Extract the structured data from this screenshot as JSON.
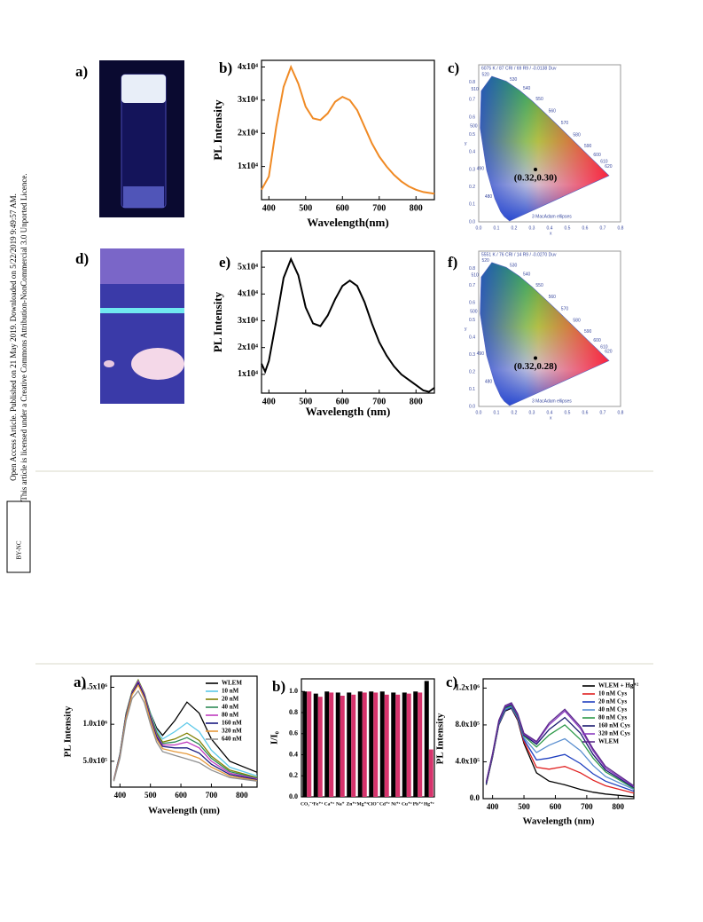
{
  "sidebar": {
    "line1": "Open Access Article. Published on 21 May 2019. Downloaded on 5/22/2019 9:49:57 AM.",
    "line2": "This article is licensed under a Creative Commons Attribution-NonCommercial 3.0 Unported Licence.",
    "badge": "BY-NC"
  },
  "panel_labels": [
    "a)",
    "b)",
    "c)",
    "d)",
    "e)",
    "f)",
    "a)",
    "b)",
    "c)"
  ],
  "cie": [
    {
      "header": "6075 K / 87 CRI / 69 R9 / -0.0138 Duv",
      "footer": "3  MacAdam ellipses",
      "point": {
        "x": 0.32,
        "y": 0.3,
        "label": "(0.32,0.30)"
      },
      "xticks": [
        "0.0",
        "0.1",
        "0.2",
        "0.3",
        "0.4",
        "0.5",
        "0.6",
        "0.7",
        "0.8"
      ],
      "yticks": [
        "0.0",
        "0.1",
        "0.2",
        "0.3",
        "0.4",
        "0.5",
        "0.6",
        "0.7",
        "0.8"
      ],
      "xlabel": "x",
      "ylabel": "y",
      "wavelengths": [
        "480",
        "490",
        "500",
        "510",
        "520",
        "530",
        "540",
        "550",
        "560",
        "570",
        "580",
        "590",
        "600",
        "610",
        "620"
      ]
    },
    {
      "header": "5551 K / 76 CRI / 14 R9 / -0.0270 Duv",
      "footer": "3  MacAdam ellipses",
      "point": {
        "x": 0.32,
        "y": 0.28,
        "label": "(0.32,0.28)"
      },
      "xticks": [
        "0.0",
        "0.1",
        "0.2",
        "0.3",
        "0.4",
        "0.5",
        "0.6",
        "0.7",
        "0.8"
      ],
      "yticks": [
        "0.0",
        "0.1",
        "0.2",
        "0.3",
        "0.4",
        "0.5",
        "0.6",
        "0.7",
        "0.8"
      ],
      "xlabel": "x",
      "ylabel": "y",
      "wavelengths": [
        "480",
        "490",
        "500",
        "510",
        "520",
        "530",
        "540",
        "550",
        "560",
        "570",
        "580",
        "590",
        "600",
        "610",
        "620"
      ]
    }
  ],
  "chart_data": [
    {
      "type": "line",
      "xlabel": "Wavelength(nm)",
      "ylabel": "PL Intensity",
      "xlim": [
        380,
        850
      ],
      "ylim": [
        0,
        42000
      ],
      "xticks": [
        400,
        500,
        600,
        700,
        800
      ],
      "yticks": [
        {
          "value": 10000,
          "label": "1x10⁴"
        },
        {
          "value": 20000,
          "label": "2x10⁴"
        },
        {
          "value": 30000,
          "label": "3x10⁴"
        },
        {
          "value": 40000,
          "label": "4x10⁴"
        }
      ],
      "x": [
        380,
        400,
        420,
        440,
        460,
        480,
        500,
        520,
        540,
        560,
        580,
        600,
        620,
        640,
        660,
        680,
        700,
        720,
        740,
        760,
        780,
        800,
        820,
        850
      ],
      "series": [
        {
          "color": "#f08a24",
          "values": [
            3000,
            7000,
            22000,
            34000,
            40000,
            35000,
            28000,
            24500,
            24000,
            26000,
            29500,
            31000,
            30000,
            27000,
            22000,
            17000,
            13000,
            10000,
            7500,
            5500,
            4000,
            3000,
            2300,
            1800
          ]
        }
      ]
    },
    {
      "type": "line",
      "xlabel": "Wavelength (nm)",
      "ylabel": "PL Intensity",
      "xlim": [
        380,
        850
      ],
      "ylim": [
        3000,
        56000
      ],
      "xticks": [
        400,
        500,
        600,
        700,
        800
      ],
      "yticks": [
        {
          "value": 10000,
          "label": "1x10⁴"
        },
        {
          "value": 20000,
          "label": "2x10⁴"
        },
        {
          "value": 30000,
          "label": "3x10⁴"
        },
        {
          "value": 40000,
          "label": "4x10⁴"
        },
        {
          "value": 50000,
          "label": "5x10⁴"
        }
      ],
      "x": [
        380,
        390,
        400,
        420,
        440,
        460,
        480,
        500,
        520,
        540,
        560,
        580,
        600,
        620,
        640,
        660,
        680,
        700,
        720,
        740,
        760,
        780,
        800,
        820,
        835,
        850
      ],
      "series": [
        {
          "color": "#000000",
          "values": [
            14000,
            11000,
            15000,
            30000,
            46000,
            53000,
            47000,
            35000,
            29000,
            28000,
            32000,
            38000,
            43000,
            45000,
            43000,
            37000,
            29000,
            22000,
            17000,
            13000,
            10000,
            8000,
            6000,
            4000,
            3500,
            5000
          ]
        }
      ]
    },
    {
      "type": "line",
      "xlabel": "Wavelength (nm)",
      "ylabel": "PL Intensity",
      "xlim": [
        370,
        850
      ],
      "ylim": [
        150000,
        1650000
      ],
      "xticks": [
        400,
        500,
        600,
        700,
        800
      ],
      "legend": "upper right",
      "yticks": [
        {
          "value": 500000,
          "label": "5.0x10⁵"
        },
        {
          "value": 1000000,
          "label": "1.0x10⁶"
        },
        {
          "value": 1500000,
          "label": "1.5x10⁶"
        }
      ],
      "x": [
        380,
        400,
        420,
        440,
        460,
        480,
        500,
        520,
        540,
        580,
        620,
        660,
        700,
        760,
        850
      ],
      "series": [
        {
          "name": "WLEM",
          "color": "#000000",
          "values": [
            250000,
            600000,
            1150000,
            1450000,
            1550000,
            1400000,
            1150000,
            950000,
            850000,
            1050000,
            1300000,
            1150000,
            800000,
            500000,
            350000
          ]
        },
        {
          "name": "10 nM",
          "color": "#5cc8e8",
          "values": [
            250000,
            600000,
            1150000,
            1450000,
            1580000,
            1420000,
            1150000,
            920000,
            800000,
            900000,
            1020000,
            900000,
            650000,
            420000,
            300000
          ]
        },
        {
          "name": "20 nM",
          "color": "#808000",
          "values": [
            250000,
            590000,
            1140000,
            1450000,
            1600000,
            1420000,
            1130000,
            890000,
            760000,
            800000,
            880000,
            780000,
            570000,
            380000,
            280000
          ]
        },
        {
          "name": "40 nM",
          "color": "#2e8b57",
          "values": [
            250000,
            590000,
            1130000,
            1440000,
            1590000,
            1410000,
            1120000,
            870000,
            740000,
            760000,
            820000,
            730000,
            540000,
            360000,
            270000
          ]
        },
        {
          "name": "80 nM",
          "color": "#c03cc0",
          "values": [
            250000,
            580000,
            1120000,
            1430000,
            1580000,
            1400000,
            1100000,
            850000,
            720000,
            720000,
            760000,
            680000,
            500000,
            340000,
            260000
          ]
        },
        {
          "name": "160 nM",
          "color": "#1a1a80",
          "values": [
            240000,
            570000,
            1110000,
            1420000,
            1560000,
            1380000,
            1080000,
            830000,
            700000,
            680000,
            680000,
            610000,
            460000,
            320000,
            250000
          ]
        },
        {
          "name": "320 nM",
          "color": "#e69a3c",
          "values": [
            240000,
            560000,
            1090000,
            1400000,
            1530000,
            1350000,
            1050000,
            800000,
            670000,
            630000,
            600000,
            540000,
            420000,
            300000,
            240000
          ]
        },
        {
          "name": "640 nM",
          "color": "#909090",
          "values": [
            230000,
            540000,
            1050000,
            1350000,
            1450000,
            1290000,
            1000000,
            760000,
            630000,
            580000,
            530000,
            480000,
            380000,
            280000,
            230000
          ]
        }
      ]
    },
    {
      "type": "bar",
      "ylabel": "I/I₀",
      "ylim": [
        0,
        1.12
      ],
      "yticks": [
        {
          "value": 0,
          "label": "0.0"
        },
        0.2,
        0.4,
        0.6,
        0.8,
        {
          "value": 1,
          "label": "1.0"
        }
      ],
      "categories": [
        "CO₃⁻²",
        "Fe⁺³",
        "Ca⁺²",
        "Na⁺",
        "Zn⁺²",
        "Mg⁺²",
        "ClO⁻",
        "Cd⁺²",
        "Ni⁺²",
        "Cu⁺²",
        "Pb⁺²",
        "Hg⁺²"
      ],
      "series": [
        {
          "color": "#000000",
          "values": [
            1,
            0.98,
            1,
            0.99,
            0.99,
            1,
            1,
            1,
            0.99,
            0.99,
            1,
            1.1
          ]
        },
        {
          "color": "#d6336c",
          "values": [
            1,
            0.95,
            0.99,
            0.96,
            0.97,
            0.99,
            0.99,
            0.97,
            0.97,
            0.98,
            0.99,
            0.45
          ]
        }
      ]
    },
    {
      "type": "line",
      "xlabel": "Wavelength (nm)",
      "ylabel": "PL Intensity",
      "xlim": [
        370,
        850
      ],
      "ylim": [
        0,
        1300000
      ],
      "xticks": [
        400,
        500,
        600,
        700,
        800
      ],
      "legend": "upper right",
      "yticks": [
        {
          "value": 0,
          "label": "0.0"
        },
        {
          "value": 400000,
          "label": "4.0x10⁵"
        },
        {
          "value": 800000,
          "label": "8.0x10⁵"
        },
        {
          "value": 1200000,
          "label": "1.2x10⁶"
        }
      ],
      "x": [
        380,
        400,
        420,
        440,
        460,
        480,
        500,
        540,
        580,
        630,
        680,
        720,
        760,
        850
      ],
      "series": [
        {
          "name": "WLEM + Hg⁺²",
          "color": "#000000",
          "values": [
            150000,
            450000,
            800000,
            950000,
            980000,
            850000,
            600000,
            280000,
            190000,
            150000,
            100000,
            70000,
            50000,
            20000
          ]
        },
        {
          "name": "10 nM Cys",
          "color": "#e02020",
          "values": [
            160000,
            460000,
            810000,
            960000,
            990000,
            860000,
            620000,
            340000,
            320000,
            350000,
            280000,
            200000,
            140000,
            60000
          ]
        },
        {
          "name": "20 nM Cys",
          "color": "#2040c0",
          "values": [
            160000,
            460000,
            810000,
            960000,
            990000,
            870000,
            640000,
            420000,
            440000,
            480000,
            380000,
            270000,
            190000,
            80000
          ]
        },
        {
          "name": "40 nM Cys",
          "color": "#5a8fd0",
          "values": [
            170000,
            470000,
            820000,
            970000,
            1000000,
            880000,
            660000,
            500000,
            580000,
            650000,
            520000,
            360000,
            240000,
            100000
          ]
        },
        {
          "name": "80 nM Cys",
          "color": "#2e9a4a",
          "values": [
            170000,
            470000,
            830000,
            980000,
            1010000,
            890000,
            680000,
            560000,
            690000,
            800000,
            640000,
            440000,
            290000,
            110000
          ]
        },
        {
          "name": "160 nM Cys",
          "color": "#1a1a70",
          "values": [
            170000,
            480000,
            830000,
            990000,
            1020000,
            900000,
            690000,
            590000,
            750000,
            880000,
            710000,
            480000,
            310000,
            120000
          ]
        },
        {
          "name": "320 nM Cys",
          "color": "#8a3cc0",
          "values": [
            180000,
            480000,
            840000,
            1000000,
            1030000,
            910000,
            700000,
            610000,
            800000,
            950000,
            760000,
            520000,
            330000,
            130000
          ]
        },
        {
          "name": "WLEM",
          "color": "#5a2a8a",
          "values": [
            180000,
            490000,
            850000,
            1010000,
            1040000,
            920000,
            710000,
            620000,
            820000,
            970000,
            780000,
            540000,
            350000,
            140000
          ]
        }
      ]
    }
  ]
}
